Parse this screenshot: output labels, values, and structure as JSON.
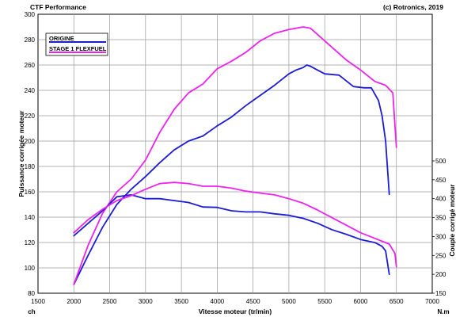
{
  "header": {
    "left": "CTF Performance",
    "right": "(c) Rotronics, 2019"
  },
  "chart_data": {
    "type": "line",
    "xlabel": "Vitesse moteur (tr/min)",
    "ylabel_left": "Puissance corrigée moteur",
    "ylabel_right": "Couple corrigé moteur",
    "unit_left": "ch",
    "unit_right": "N.m",
    "xlim": [
      1500,
      7000
    ],
    "ylim_left": [
      80,
      300
    ],
    "ylim_right": [
      150,
      500
    ],
    "x_ticks": [
      1500,
      2000,
      2500,
      3000,
      3500,
      4000,
      4500,
      5000,
      5500,
      6000,
      6500,
      7000
    ],
    "y_left_ticks": [
      80,
      100,
      120,
      140,
      160,
      180,
      200,
      220,
      240,
      260,
      280,
      300
    ],
    "y_right_ticks": [
      150,
      200,
      250,
      300,
      350,
      400,
      450,
      500
    ],
    "grid": true,
    "legend_position": "top-left",
    "colors": {
      "origine": "#1c1cd6",
      "stage1": "#ee22ee"
    },
    "series": [
      {
        "name": "ORIGINE",
        "quantity": "power",
        "axis": "left",
        "color": "#1c1cd6",
        "x": [
          2000,
          2200,
          2400,
          2600,
          2800,
          3000,
          3200,
          3400,
          3600,
          3800,
          4000,
          4200,
          4400,
          4600,
          4800,
          5000,
          5100,
          5200,
          5250,
          5300,
          5400,
          5500,
          5700,
          5900,
          6050,
          6150,
          6250,
          6300,
          6350,
          6400
        ],
        "values": [
          87,
          110,
          132,
          150,
          162,
          172,
          183,
          193,
          200,
          204,
          212,
          219,
          228,
          236,
          244,
          253,
          256,
          258,
          260,
          259,
          256,
          253,
          252,
          243,
          242,
          242,
          232,
          220,
          200,
          158
        ]
      },
      {
        "name": "STAGE 1 FLEXFUEL",
        "quantity": "power",
        "axis": "left",
        "color": "#ee22ee",
        "x": [
          2000,
          2200,
          2400,
          2600,
          2800,
          3000,
          3200,
          3400,
          3600,
          3800,
          4000,
          4200,
          4400,
          4600,
          4800,
          5000,
          5200,
          5300,
          5400,
          5600,
          5800,
          6000,
          6200,
          6350,
          6450,
          6500
        ],
        "values": [
          87,
          118,
          143,
          160,
          170,
          185,
          207,
          225,
          238,
          245,
          257,
          263,
          270,
          279,
          285,
          288,
          290,
          289,
          284,
          274,
          264,
          256,
          247,
          244,
          238,
          195
        ]
      },
      {
        "name": "ORIGINE",
        "quantity": "torque",
        "axis": "right",
        "color": "#1c1cd6",
        "x": [
          2000,
          2200,
          2400,
          2600,
          2800,
          3000,
          3200,
          3400,
          3600,
          3800,
          4000,
          4200,
          4400,
          4600,
          4800,
          5000,
          5200,
          5400,
          5600,
          5800,
          6000,
          6200,
          6300,
          6350,
          6400
        ],
        "values": [
          302,
          335,
          368,
          405,
          410,
          400,
          400,
          395,
          390,
          378,
          377,
          368,
          365,
          365,
          360,
          356,
          348,
          335,
          318,
          306,
          292,
          284,
          274,
          262,
          200
        ]
      },
      {
        "name": "STAGE 1 FLEXFUEL",
        "quantity": "torque",
        "axis": "right",
        "color": "#ee22ee",
        "x": [
          2000,
          2200,
          2400,
          2600,
          2800,
          3000,
          3200,
          3400,
          3600,
          3800,
          4000,
          4200,
          4400,
          4600,
          4800,
          5000,
          5200,
          5400,
          5600,
          5800,
          6000,
          6200,
          6400,
          6480,
          6500
        ],
        "values": [
          310,
          345,
          372,
          395,
          408,
          425,
          440,
          443,
          440,
          433,
          433,
          428,
          420,
          415,
          410,
          400,
          388,
          370,
          350,
          330,
          310,
          295,
          280,
          255,
          220
        ]
      }
    ],
    "legend": [
      {
        "label": "ORIGINE",
        "color": "#1c1cd6"
      },
      {
        "label": "STAGE 1 FLEXFUEL",
        "color": "#ee22ee"
      }
    ]
  }
}
